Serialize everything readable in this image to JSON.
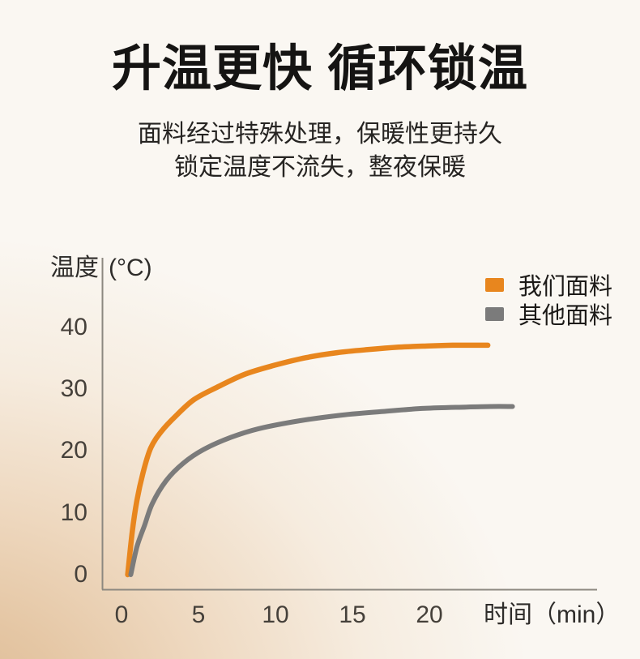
{
  "header": {
    "title": "升温更快 循环锁温",
    "subtitle_line1": "面料经过特殊处理，保暖性更持久",
    "subtitle_line2": "锁定温度不流失，整夜保暖"
  },
  "chart_data": {
    "type": "line",
    "title": "",
    "xlabel": "时间（min）",
    "ylabel": "温度",
    "y_unit": "(°C)",
    "xlim": [
      0,
      26
    ],
    "ylim": [
      0,
      44
    ],
    "x_ticks": [
      0,
      5,
      10,
      15,
      20
    ],
    "y_ticks": [
      0,
      10,
      20,
      30,
      40
    ],
    "grid": false,
    "legend_position": "top-right",
    "series": [
      {
        "name": "我们面料",
        "color": "#E8861E",
        "x": [
          0.4,
          0.7,
          1.0,
          1.4,
          1.9,
          2.6,
          3.5,
          4.7,
          6.2,
          8.0,
          10.0,
          12.0,
          14.0,
          16.0,
          18.0,
          20.0,
          21.5,
          23.0,
          23.8
        ],
        "values": [
          0.0,
          7.0,
          12.0,
          16.5,
          20.5,
          23.2,
          25.6,
          28.3,
          30.3,
          32.4,
          33.9,
          35.1,
          35.9,
          36.4,
          36.8,
          37.0,
          37.1,
          37.1,
          37.1
        ]
      },
      {
        "name": "其他面料",
        "color": "#7B7B7B",
        "x": [
          0.6,
          1.0,
          1.5,
          2.0,
          2.9,
          4.0,
          5.3,
          7.1,
          8.9,
          11.6,
          14.3,
          17.0,
          19.7,
          22.4,
          24.0,
          25.4
        ],
        "values": [
          0.0,
          4.5,
          8.0,
          11.5,
          15.2,
          18.0,
          20.2,
          22.2,
          23.6,
          24.9,
          25.8,
          26.4,
          26.9,
          27.1,
          27.2,
          27.2
        ]
      }
    ]
  },
  "colors": {
    "accent_orange": "#E8861E",
    "neutral_gray": "#7B7B7B",
    "axis": "#8C8880",
    "background_cream": "#FAF7F2",
    "background_warm": "#E3C19E"
  }
}
